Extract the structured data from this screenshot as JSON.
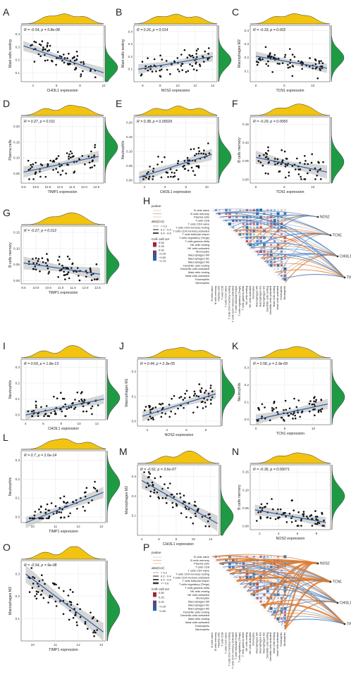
{
  "colors": {
    "density_top": "#f2c40f",
    "density_right": "#1f9a44",
    "regression_line": "#2b5ea7",
    "ci_band": "#c8c8c8",
    "points": "#111111",
    "positive_edge": "#e07b2e",
    "negative_edge": "#4a7fc0",
    "cor_high": "#b2182b",
    "cor_low": "#2166ac"
  },
  "chart_data": [
    {
      "id": "A",
      "type": "scatter",
      "annotation": "R = -0.54, p = 5.8e-08",
      "xlabel": "CHI3L1 expression",
      "ylabel": "Mast cells resting",
      "xticks": [
        4,
        6,
        8,
        10
      ],
      "yticks": [
        0.1,
        0.2,
        0.3,
        0.4
      ],
      "xlim": [
        3,
        10
      ],
      "ylim": [
        0.03,
        0.47
      ],
      "fit": [
        [
          3.2,
          0.31
        ],
        [
          10,
          0.1
        ]
      ],
      "ci_width": 0.04
    },
    {
      "id": "B",
      "type": "scatter",
      "annotation": "R = 0.26, p = 0.014",
      "xlabel": "NOS2 expression",
      "ylabel": "Mast cells resting",
      "xticks": [
        6,
        8,
        10,
        12,
        14
      ],
      "yticks": [
        0.1,
        0.2,
        0.3,
        0.4
      ],
      "xlim": [
        5,
        14.5
      ],
      "ylim": [
        0,
        0.45
      ],
      "fit": [
        [
          5.5,
          0.1
        ],
        [
          14,
          0.2
        ]
      ],
      "ci_width": 0.04
    },
    {
      "id": "C",
      "type": "scatter",
      "annotation": "R = -0.33, p = 0.002",
      "xlabel": "TCN1 expression",
      "ylabel": "Macrophages M2",
      "xticks": [
        0,
        5,
        10
      ],
      "yticks": [
        0.1,
        0.2,
        0.3,
        0.4
      ],
      "xlim": [
        -1,
        13
      ],
      "ylim": [
        0.02,
        0.44
      ],
      "fit": [
        [
          0,
          0.21
        ],
        [
          12.5,
          0.12
        ]
      ],
      "ci_width": 0.035
    },
    {
      "id": "D",
      "type": "scatter",
      "annotation": "R = 0.27, p = 0.011",
      "xlabel": "TIMP1 expression",
      "ylabel": "Plasma cells",
      "xticks": [
        9.5,
        10.0,
        10.5,
        11.0,
        11.5,
        12.0,
        12.5
      ],
      "yticks": [
        0.05,
        0.1,
        0.15,
        0.2
      ],
      "xlim": [
        9.4,
        12.8
      ],
      "ylim": [
        0.02,
        0.23
      ],
      "fit": [
        [
          9.5,
          0.055
        ],
        [
          12.6,
          0.105
        ]
      ],
      "ci_width": 0.018
    },
    {
      "id": "E",
      "type": "scatter",
      "annotation": "R = 0.38, p = 0.00029",
      "xlabel": "CHI3L1 expression",
      "ylabel": "Neutrophils",
      "xticks": [
        4,
        6,
        8,
        10
      ],
      "yticks": [
        0.0,
        0.05,
        0.1,
        0.15,
        0.2
      ],
      "xlim": [
        3,
        11
      ],
      "ylim": [
        -0.01,
        0.22
      ],
      "fit": [
        [
          3.5,
          0.01
        ],
        [
          10.5,
          0.09
        ]
      ],
      "ci_width": 0.02
    },
    {
      "id": "F",
      "type": "scatter",
      "annotation": "R = -0.29, p = 0.0065",
      "xlabel": "TCN1 expression",
      "ylabel": "B cells memory",
      "xticks": [
        0,
        5,
        10
      ],
      "yticks": [
        0.0,
        0.05,
        0.1,
        0.15
      ],
      "xlim": [
        -1,
        13
      ],
      "ylim": [
        -0.01,
        0.17
      ],
      "fit": [
        [
          0,
          0.06
        ],
        [
          12.5,
          0.02
        ]
      ],
      "ci_width": 0.018
    },
    {
      "id": "G",
      "type": "scatter",
      "annotation": "R = -0.27, p = 0.012",
      "xlabel": "TIMP1 expression",
      "ylabel": "B cells memory",
      "xticks": [
        9.5,
        10.0,
        10.5,
        11.0,
        11.5,
        12.0,
        12.5
      ],
      "yticks": [
        0.0,
        0.05,
        0.1,
        0.15
      ],
      "xlim": [
        9.4,
        12.8
      ],
      "ylim": [
        -0.01,
        0.17
      ],
      "fit": [
        [
          9.5,
          0.055
        ],
        [
          12.6,
          0.02
        ]
      ],
      "ci_width": 0.02
    },
    {
      "id": "I",
      "type": "scatter",
      "annotation": "R = 0.69, p = 1.8e-13",
      "xlabel": "CHI3L1 expression",
      "ylabel": "Neutrophils",
      "xticks": [
        4,
        6,
        8,
        10,
        12
      ],
      "yticks": [
        0.0,
        0.1,
        0.2,
        0.3
      ],
      "xlim": [
        3.5,
        13
      ],
      "ylim": [
        -0.03,
        0.35
      ],
      "fit": [
        [
          4,
          0.0
        ],
        [
          12.8,
          0.1
        ]
      ],
      "ci_width": 0.03
    },
    {
      "id": "J",
      "type": "scatter",
      "annotation": "R = 0.44, p = 2.3e-05",
      "xlabel": "NOS2 expression",
      "ylabel": "Macrophages M1",
      "xticks": [
        2,
        4,
        6,
        8
      ],
      "yticks": [
        0.0,
        0.1,
        0.2
      ],
      "xlim": [
        1,
        9.5
      ],
      "ylim": [
        -0.02,
        0.25
      ],
      "fit": [
        [
          1.5,
          0.02
        ],
        [
          9,
          0.11
        ]
      ],
      "ci_width": 0.02
    },
    {
      "id": "K",
      "type": "scatter",
      "annotation": "R = 0.58, p = 2.9e-09",
      "xlabel": "TCN1 expression",
      "ylabel": "Neutrophils",
      "xticks": [
        0,
        5,
        10
      ],
      "yticks": [
        0.0,
        0.1,
        0.2,
        0.3
      ],
      "xlim": [
        -1,
        13
      ],
      "ylim": [
        -0.03,
        0.35
      ],
      "fit": [
        [
          0,
          0.0
        ],
        [
          12.5,
          0.09
        ]
      ],
      "ci_width": 0.03
    },
    {
      "id": "L",
      "type": "scatter",
      "annotation": "R = 0.7, p = 2.6e-14",
      "xlabel": "TIMP1 expression",
      "ylabel": "Neutrophils",
      "xticks": [
        10,
        11,
        12,
        13
      ],
      "yticks": [
        0.0,
        0.1,
        0.2,
        0.3
      ],
      "xlim": [
        9.5,
        13.2
      ],
      "ylim": [
        -0.03,
        0.35
      ],
      "fit": [
        [
          9.7,
          -0.03
        ],
        [
          13.1,
          0.13
        ]
      ],
      "ci_width": 0.03
    },
    {
      "id": "M",
      "type": "scatter",
      "annotation": "R = -0.52, p = 3.6e-07",
      "xlabel": "CHI3L1 expression",
      "ylabel": "Macrophages M2",
      "xticks": [
        4,
        6,
        8,
        10,
        12
      ],
      "yticks": [
        0.1,
        0.2,
        0.3
      ],
      "xlim": [
        3.5,
        13
      ],
      "ylim": [
        0.0,
        0.36
      ],
      "fit": [
        [
          4,
          0.28
        ],
        [
          12.8,
          0.06
        ]
      ],
      "ci_width": 0.04
    },
    {
      "id": "N",
      "type": "scatter",
      "annotation": "R = -0.36, p = 0.00071",
      "xlabel": "NOS2 expression",
      "ylabel": "B cells memory",
      "xticks": [
        2,
        4,
        6,
        8
      ],
      "yticks": [
        0.0,
        0.05,
        0.1,
        0.15
      ],
      "xlim": [
        1,
        9.5
      ],
      "ylim": [
        -0.01,
        0.17
      ],
      "fit": [
        [
          1.5,
          0.045
        ],
        [
          9,
          0.01
        ]
      ],
      "ci_width": 0.015
    },
    {
      "id": "O",
      "type": "scatter",
      "annotation": "R = -0.54, p = 9e-08",
      "xlabel": "TIMP1 expression",
      "ylabel": "Macrophages M2",
      "xticks": [
        10,
        11,
        12,
        13
      ],
      "yticks": [
        0.1,
        0.2,
        0.3
      ],
      "xlim": [
        9.5,
        13.2
      ],
      "ylim": [
        0.0,
        0.36
      ],
      "fit": [
        [
          9.7,
          0.3
        ],
        [
          13.1,
          0.04
        ]
      ],
      "ci_width": 0.04
    },
    {
      "id": "H",
      "type": "heatmap",
      "genes": [
        "NOS2",
        "TCN1",
        "CHI3L1",
        "TIMP1"
      ]
    },
    {
      "id": "P",
      "type": "heatmap",
      "genes": [
        "NOS2",
        "TCN1",
        "CHI3L1",
        "TIMP1"
      ]
    }
  ],
  "cell_types": [
    "B cells naive",
    "B cells memory",
    "Plasma cells",
    "T cells CD8",
    "T cells CD4 naive",
    "T cells CD4 memory resting",
    "T cells CD4 memory activated",
    "T cells follicular helper",
    "T cells regulatory (Tregs)",
    "T cells gamma delta",
    "NK cells resting",
    "NK cells activated",
    "Monocytes",
    "Macrophages M0",
    "Macrophages M1",
    "Macrophages M2",
    "Dendritic cells resting",
    "Dendritic cells activated",
    "Mast cells resting",
    "Mast cells activated",
    "Eosinophils",
    "Neutrophils"
  ],
  "legend_H": {
    "pvalue_title": "pvalue",
    "abs_title": "abs(Cor)",
    "abs_items": [
      "< 0.2",
      "0.2 - 0.4",
      "0.4 - 0.6"
    ],
    "cor_title": "Cell−cell cor",
    "cor_ticks": [
      "0.50",
      "0.25",
      "0.00",
      "−0.25",
      "−0.50",
      "−0.75"
    ]
  },
  "legend_P": {
    "pvalue_title": "pvalue",
    "abs_title": "abs(Cor)",
    "abs_items": [
      "< 0.2",
      "0.2 - 0.4",
      "0.4 - 0.6",
      ">= 0.6"
    ],
    "cor_title": "Cell−cell cor",
    "cor_ticks": [
      "0.50",
      "0.25",
      "0.00",
      "−0.25",
      "−0.50"
    ]
  }
}
